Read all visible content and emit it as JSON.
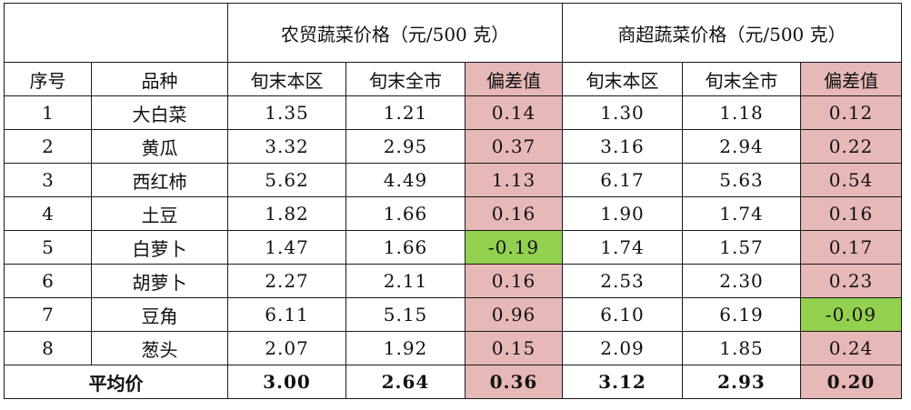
{
  "group_headers": {
    "farm_market": "农贸蔬菜价格（元/500 克）",
    "supermarket": "商超蔬菜价格（元/500 克）"
  },
  "column_headers": {
    "index": "序号",
    "variety": "品种",
    "farm_local": "旬末本区",
    "farm_city": "旬末全市",
    "farm_diff": "偏差值",
    "super_local": "旬末本区",
    "super_city": "旬末全市",
    "super_diff": "偏差值"
  },
  "rows": [
    {
      "index": "1",
      "variety": "大白菜",
      "farm_local": "1.35",
      "farm_city": "1.21",
      "farm_diff": "0.14",
      "super_local": "1.30",
      "super_city": "1.18",
      "super_diff": "0.12"
    },
    {
      "index": "2",
      "variety": "黄瓜",
      "farm_local": "3.32",
      "farm_city": "2.95",
      "farm_diff": "0.37",
      "super_local": "3.16",
      "super_city": "2.94",
      "super_diff": "0.22"
    },
    {
      "index": "3",
      "variety": "西红柿",
      "farm_local": "5.62",
      "farm_city": "4.49",
      "farm_diff": "1.13",
      "super_local": "6.17",
      "super_city": "5.63",
      "super_diff": "0.54"
    },
    {
      "index": "4",
      "variety": "土豆",
      "farm_local": "1.82",
      "farm_city": "1.66",
      "farm_diff": "0.16",
      "super_local": "1.90",
      "super_city": "1.74",
      "super_diff": "0.16"
    },
    {
      "index": "5",
      "variety": "白萝卜",
      "farm_local": "1.47",
      "farm_city": "1.66",
      "farm_diff": "-0.19",
      "super_local": "1.74",
      "super_city": "1.57",
      "super_diff": "0.17"
    },
    {
      "index": "6",
      "variety": "胡萝卜",
      "farm_local": "2.27",
      "farm_city": "2.11",
      "farm_diff": "0.16",
      "super_local": "2.53",
      "super_city": "2.30",
      "super_diff": "0.23"
    },
    {
      "index": "7",
      "variety": "豆角",
      "farm_local": "6.11",
      "farm_city": "5.15",
      "farm_diff": "0.96",
      "super_local": "6.10",
      "super_city": "6.19",
      "super_diff": "-0.09"
    },
    {
      "index": "8",
      "variety": "葱头",
      "farm_local": "2.07",
      "farm_city": "1.92",
      "farm_diff": "0.15",
      "super_local": "2.09",
      "super_city": "1.85",
      "super_diff": "0.24"
    }
  ],
  "average": {
    "label": "平均价",
    "farm_local": "3.00",
    "farm_city": "2.64",
    "farm_diff": "0.36",
    "super_local": "3.12",
    "super_city": "2.93",
    "super_diff": "0.20"
  },
  "colors": {
    "positive_deviation": "#e6b8b7",
    "negative_deviation": "#92d050",
    "border": "#1a1a1a"
  }
}
